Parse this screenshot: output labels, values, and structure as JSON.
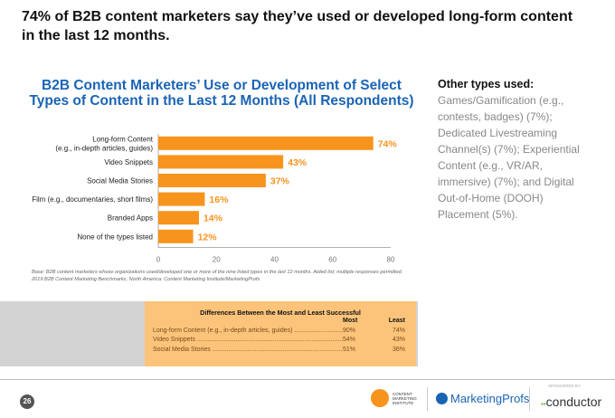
{
  "headline": "74% of B2B content marketers say they’ve used or developed long-form content in the last 12 months.",
  "chart_data": {
    "type": "bar",
    "orientation": "horizontal",
    "title": "B2B Content Marketers’ Use or Development of Select Types of Content in the Last 12 Months (All Respondents)",
    "categories": [
      [
        "Long-form Content",
        "(e.g., in-depth articles, guides)"
      ],
      [
        "Video Snippets"
      ],
      [
        "Social Media Stories"
      ],
      [
        "Film (e.g., documentaries, short films)"
      ],
      [
        "Branded Apps"
      ],
      [
        "None of the types listed"
      ]
    ],
    "values": [
      74,
      43,
      37,
      16,
      14,
      12
    ],
    "value_labels": [
      "74%",
      "43%",
      "37%",
      "16%",
      "14%",
      "12%"
    ],
    "xlim": [
      0,
      80
    ],
    "xticks": [
      "0",
      "20",
      "40",
      "60",
      "80"
    ],
    "grid": false,
    "bar_color": "#f7941d",
    "label_color": "#f7941d"
  },
  "base_note": [
    "Base: B2B content marketers whose organizations used/developed one or more of the nine listed types in the last 12 months. Aided list; multiple responses permitted.",
    "2019 B2B Content Marketing Benchmarks, North America: Content Marketing Institute/MarketingProfs"
  ],
  "differences": {
    "title": "Differences Between the Most and Least Successful",
    "col_most": "Most",
    "col_least": "Least",
    "rows": [
      {
        "label": "Long-form Content (e.g., in-depth articles, guides)",
        "most": "90%",
        "least": "74%"
      },
      {
        "label": "Video Snippets",
        "most": "54%",
        "least": "43%"
      },
      {
        "label": "Social Media Stories",
        "most": "51%",
        "least": "36%"
      }
    ]
  },
  "side": {
    "title": "Other types used:",
    "text": "Games/Gamification (e.g., contests, badges) (7%); Dedicated Livestreaming Channel(s) (7%); Experiential Content (e.g., VR/AR, immersive) (7%); and Digital Out-of-Home (DOOH) Placement (5%)."
  },
  "footer": {
    "page": "26",
    "cmi": "CONTENT MARKETING INSTITUTE",
    "mp": "MarketingProfs",
    "sponsored": "SPONSORED BY",
    "conductor": "conductor"
  }
}
